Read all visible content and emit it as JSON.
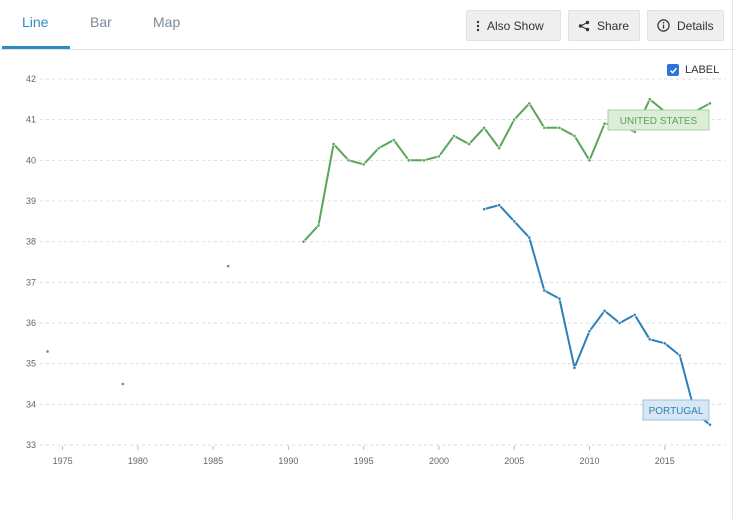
{
  "tabs": [
    {
      "label": "Line",
      "active": true
    },
    {
      "label": "Bar",
      "active": false
    },
    {
      "label": "Map",
      "active": false
    }
  ],
  "toolbar": {
    "also_show": "Also Show",
    "share": "Share",
    "details": "Details"
  },
  "label_toggle": {
    "label": "LABEL",
    "checked": true
  },
  "colors": {
    "accent": "#2d8ac5",
    "us": "#5aa55b",
    "pt": "#2c80b9"
  },
  "chart_data": {
    "type": "line",
    "xlim": [
      1973.5,
      2019
    ],
    "ylim": [
      33,
      42
    ],
    "xticks": [
      1975,
      1980,
      1985,
      1990,
      1995,
      2000,
      2005,
      2010,
      2015
    ],
    "yticks": [
      33,
      34,
      35,
      36,
      37,
      38,
      39,
      40,
      41,
      42
    ],
    "grid": true,
    "series": [
      {
        "name": "UNITED STATES",
        "color": "#5aa55b",
        "points": [
          [
            1974,
            35.3
          ],
          [
            1979,
            34.5
          ],
          [
            1986,
            37.4
          ],
          [
            1991,
            38.0
          ],
          [
            1992,
            38.4
          ],
          [
            1993,
            40.4
          ],
          [
            1994,
            40.0
          ],
          [
            1995,
            39.9
          ],
          [
            1996,
            40.3
          ],
          [
            1997,
            40.5
          ],
          [
            1998,
            40.0
          ],
          [
            1999,
            40.0
          ],
          [
            2000,
            40.1
          ],
          [
            2001,
            40.6
          ],
          [
            2002,
            40.4
          ],
          [
            2003,
            40.8
          ],
          [
            2004,
            40.3
          ],
          [
            2005,
            41.0
          ],
          [
            2006,
            41.4
          ],
          [
            2007,
            40.8
          ],
          [
            2008,
            40.8
          ],
          [
            2009,
            40.6
          ],
          [
            2010,
            40.0
          ],
          [
            2011,
            40.9
          ],
          [
            2012,
            40.9
          ],
          [
            2013,
            40.7
          ],
          [
            2014,
            41.5
          ],
          [
            2015,
            41.2
          ],
          [
            2016,
            41.1
          ],
          [
            2017,
            41.2
          ],
          [
            2018,
            41.4
          ]
        ]
      },
      {
        "name": "PORTUGAL",
        "color": "#2c80b9",
        "points": [
          [
            2003,
            38.8
          ],
          [
            2004,
            38.9
          ],
          [
            2005,
            38.5
          ],
          [
            2006,
            38.1
          ],
          [
            2007,
            36.8
          ],
          [
            2008,
            36.6
          ],
          [
            2009,
            34.9
          ],
          [
            2010,
            35.8
          ],
          [
            2011,
            36.3
          ],
          [
            2012,
            36.0
          ],
          [
            2013,
            36.2
          ],
          [
            2014,
            35.6
          ],
          [
            2015,
            35.5
          ],
          [
            2016,
            35.2
          ],
          [
            2017,
            33.8
          ],
          [
            2018,
            33.5
          ]
        ]
      }
    ]
  }
}
